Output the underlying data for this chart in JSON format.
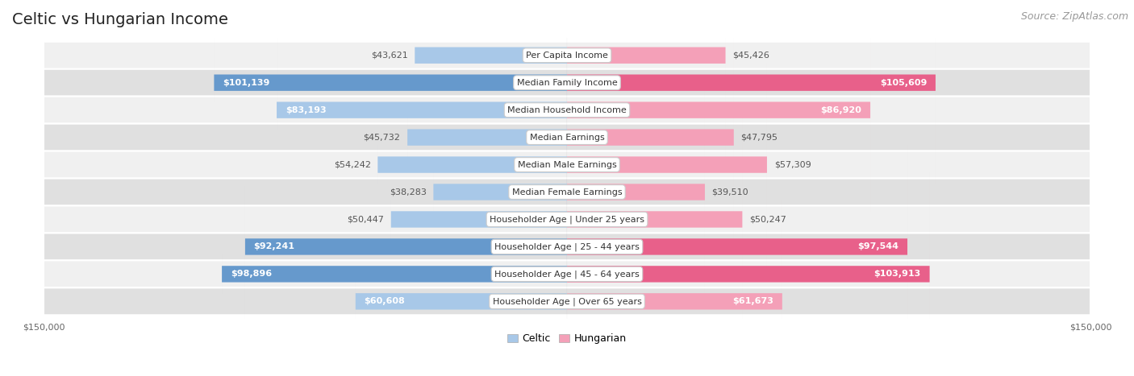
{
  "title": "Celtic vs Hungarian Income",
  "source": "Source: ZipAtlas.com",
  "categories": [
    "Per Capita Income",
    "Median Family Income",
    "Median Household Income",
    "Median Earnings",
    "Median Male Earnings",
    "Median Female Earnings",
    "Householder Age | Under 25 years",
    "Householder Age | 25 - 44 years",
    "Householder Age | 45 - 64 years",
    "Householder Age | Over 65 years"
  ],
  "celtic_values": [
    43621,
    101139,
    83193,
    45732,
    54242,
    38283,
    50447,
    92241,
    98896,
    60608
  ],
  "hungarian_values": [
    45426,
    105609,
    86920,
    47795,
    57309,
    39510,
    50247,
    97544,
    103913,
    61673
  ],
  "celtic_labels": [
    "$43,621",
    "$101,139",
    "$83,193",
    "$45,732",
    "$54,242",
    "$38,283",
    "$50,447",
    "$92,241",
    "$98,896",
    "$60,608"
  ],
  "hungarian_labels": [
    "$45,426",
    "$105,609",
    "$86,920",
    "$47,795",
    "$57,309",
    "$39,510",
    "$50,247",
    "$97,544",
    "$103,913",
    "$61,673"
  ],
  "max_value": 150000,
  "celtic_color_light": "#a8c8e8",
  "celtic_color_dark": "#6699cc",
  "hungarian_color_light": "#f4a0b8",
  "hungarian_color_dark": "#e8608a",
  "row_bg_even": "#f0f0f0",
  "row_bg_odd": "#e0e0e0",
  "title_fontsize": 14,
  "source_fontsize": 9,
  "bar_label_fontsize": 8,
  "category_fontsize": 8,
  "axis_label_fontsize": 8,
  "legend_fontsize": 9,
  "bar_height": 0.6,
  "inside_label_threshold": 60000
}
